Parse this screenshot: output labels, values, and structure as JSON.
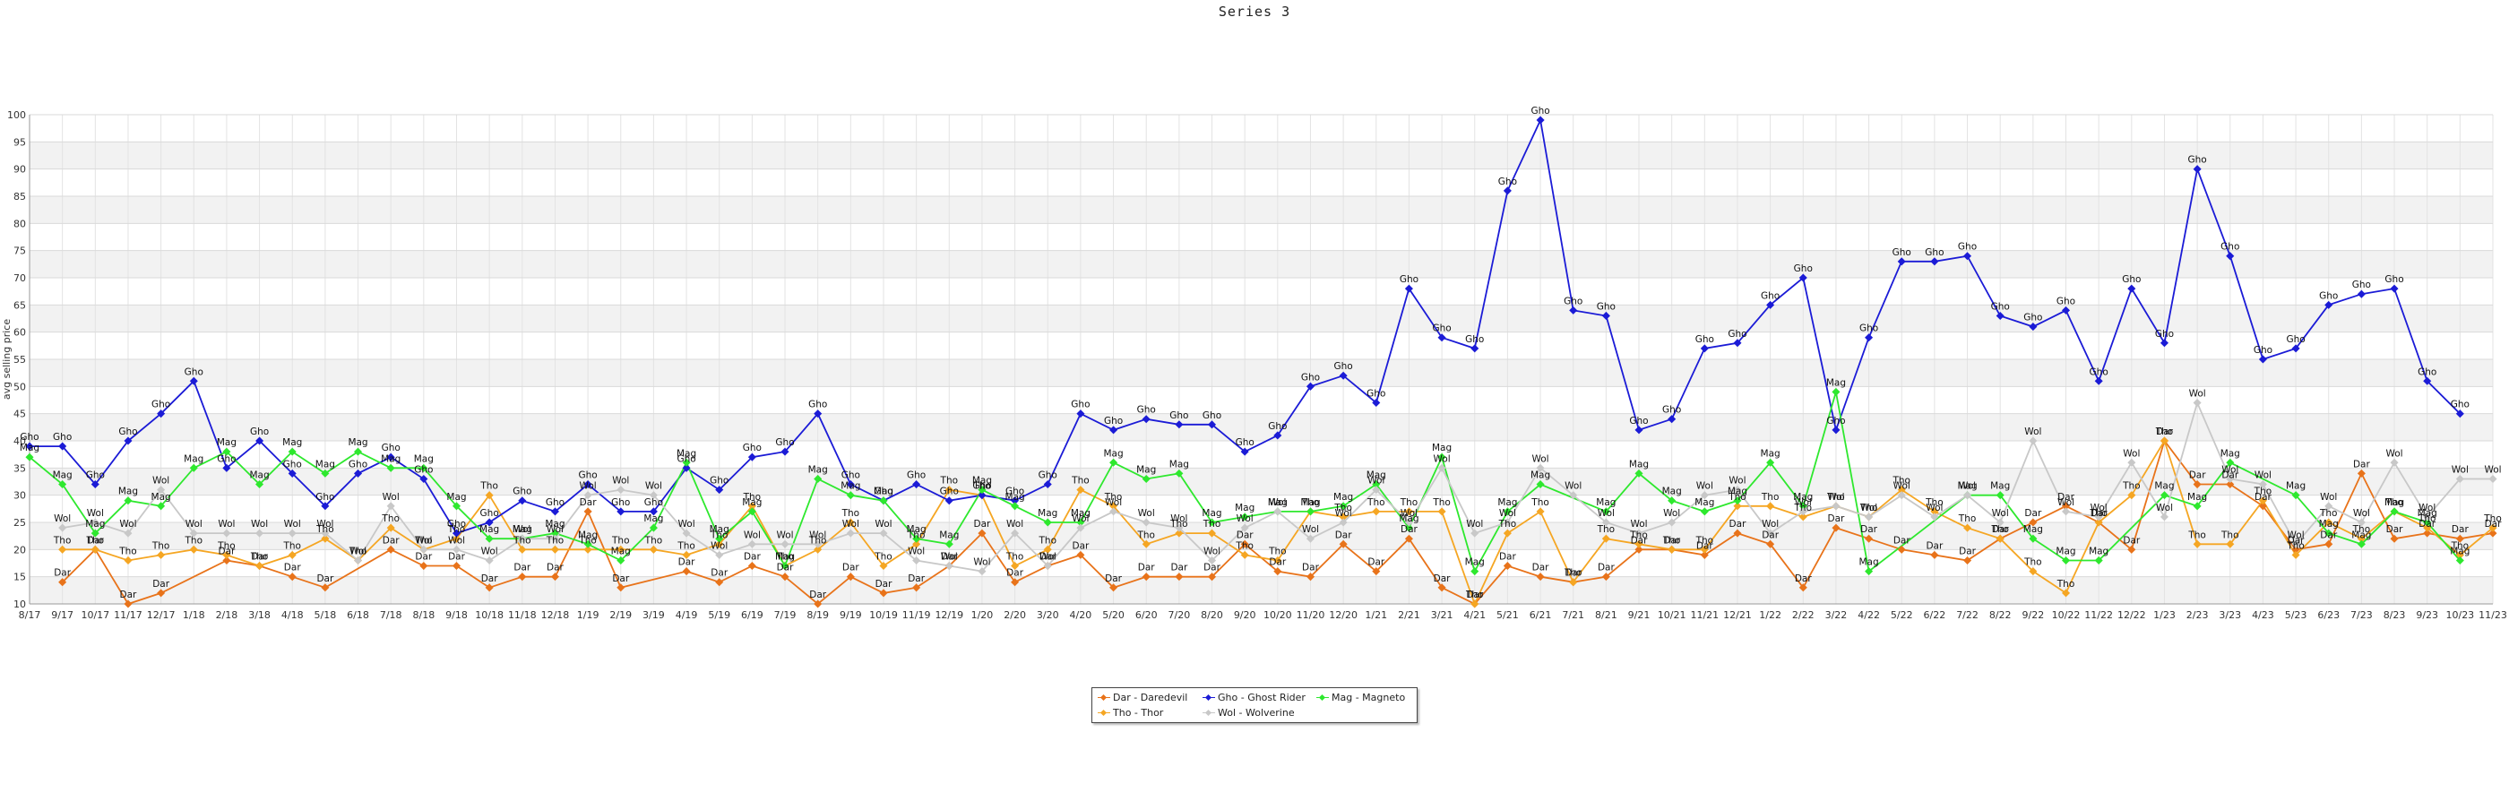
{
  "chart_data": {
    "type": "line",
    "title": "Series 3",
    "ylabel": "avg selling price",
    "xlabel": "",
    "ylim": [
      10,
      100
    ],
    "yticks": [
      10,
      15,
      20,
      25,
      30,
      35,
      40,
      45,
      50,
      55,
      60,
      65,
      70,
      75,
      80,
      85,
      90,
      95,
      100
    ],
    "x_tick_labels": [
      "8/17",
      "9/17",
      "10/17",
      "11/17",
      "12/17",
      "1/18",
      "2/18",
      "3/18",
      "4/18",
      "5/18",
      "6/18",
      "7/18",
      "8/18",
      "9/18",
      "10/18",
      "11/18",
      "12/18",
      "1/19",
      "2/19",
      "3/19",
      "4/19",
      "5/19",
      "6/19",
      "7/19",
      "8/19",
      "9/19",
      "10/19",
      "11/19",
      "12/19",
      "1/20",
      "2/20",
      "3/20",
      "4/20",
      "5/20",
      "6/20",
      "7/20",
      "8/20",
      "9/20",
      "10/20",
      "11/20",
      "12/20",
      "1/21",
      "2/21",
      "3/21",
      "4/21",
      "5/21",
      "6/21",
      "7/21",
      "8/21",
      "9/21",
      "10/21",
      "11/21",
      "12/21",
      "1/22",
      "2/22",
      "3/22",
      "4/22",
      "5/22",
      "6/22",
      "7/22",
      "8/22",
      "9/22",
      "10/22",
      "11/22",
      "12/22",
      "1/23",
      "2/23",
      "3/23",
      "4/23",
      "5/23",
      "6/23",
      "7/23",
      "8/23",
      "9/23",
      "10/23",
      "11/23"
    ],
    "grid": true,
    "legend_position": "bottom-center",
    "series": [
      {
        "name": "Dar - Daredevil",
        "short": "Dar",
        "color": "#e8731a",
        "values": [
          null,
          14,
          20,
          10,
          12,
          null,
          18,
          17,
          15,
          13,
          null,
          20,
          17,
          17,
          13,
          15,
          15,
          27,
          13,
          null,
          16,
          14,
          17,
          15,
          10,
          15,
          12,
          13,
          17,
          23,
          14,
          17,
          19,
          13,
          15,
          15,
          15,
          21,
          16,
          15,
          21,
          16,
          22,
          13,
          10,
          17,
          15,
          14,
          15,
          20,
          20,
          19,
          23,
          21,
          13,
          24,
          22,
          20,
          19,
          18,
          22,
          25,
          28,
          25,
          20,
          40,
          32,
          32,
          28,
          20,
          21,
          34,
          22,
          23,
          22,
          23
        ]
      },
      {
        "name": "Tho - Thor",
        "short": "Tho",
        "color": "#f5a623",
        "values": [
          null,
          20,
          20,
          18,
          19,
          20,
          19,
          17,
          19,
          22,
          18,
          24,
          20,
          22,
          30,
          20,
          20,
          20,
          20,
          20,
          19,
          21,
          28,
          17,
          20,
          25,
          17,
          21,
          31,
          30,
          17,
          20,
          31,
          28,
          21,
          23,
          23,
          19,
          18,
          27,
          26,
          27,
          27,
          27,
          10,
          23,
          27,
          14,
          22,
          21,
          20,
          20,
          28,
          28,
          26,
          28,
          26,
          31,
          27,
          24,
          22,
          16,
          12,
          25,
          30,
          40,
          21,
          21,
          29,
          19,
          25,
          22,
          27,
          24,
          19,
          24
        ]
      },
      {
        "name": "Gho - Ghost Rider",
        "short": "Gho",
        "color": "#1b1bd6",
        "values": [
          39,
          39,
          32,
          40,
          45,
          51,
          35,
          40,
          34,
          28,
          34,
          37,
          33,
          23,
          25,
          29,
          27,
          32,
          27,
          27,
          35,
          31,
          37,
          38,
          45,
          32,
          29,
          32,
          29,
          30,
          29,
          32,
          45,
          42,
          44,
          43,
          43,
          38,
          41,
          50,
          52,
          47,
          68,
          59,
          57,
          86,
          99,
          64,
          63,
          42,
          44,
          57,
          58,
          65,
          70,
          42,
          59,
          73,
          73,
          74,
          63,
          61,
          64,
          51,
          68,
          58,
          90,
          74,
          55,
          57,
          65,
          67,
          68,
          51,
          45,
          null
        ]
      },
      {
        "name": "Mag - Magneto",
        "short": "Mag",
        "color": "#2ee82e",
        "values": [
          37,
          32,
          23,
          29,
          28,
          35,
          38,
          32,
          38,
          34,
          38,
          35,
          35,
          28,
          22,
          22,
          23,
          21,
          18,
          24,
          36,
          22,
          27,
          17,
          33,
          30,
          29,
          22,
          21,
          31,
          28,
          25,
          25,
          36,
          33,
          34,
          25,
          26,
          27,
          27,
          28,
          32,
          24,
          37,
          16,
          27,
          32,
          null,
          27,
          34,
          29,
          27,
          29,
          36,
          28,
          49,
          16,
          null,
          null,
          30,
          30,
          22,
          18,
          18,
          null,
          30,
          28,
          36,
          null,
          30,
          23,
          21,
          27,
          25,
          18,
          null
        ]
      },
      {
        "name": "Wol - Wolverine",
        "short": "Wol",
        "color": "#c8c8c8",
        "values": [
          null,
          24,
          25,
          23,
          31,
          23,
          23,
          23,
          23,
          23,
          18,
          28,
          20,
          20,
          18,
          22,
          22,
          30,
          31,
          30,
          23,
          19,
          21,
          21,
          21,
          23,
          23,
          18,
          17,
          16,
          23,
          17,
          24,
          27,
          25,
          24,
          18,
          24,
          27,
          22,
          25,
          31,
          25,
          35,
          23,
          25,
          35,
          30,
          25,
          23,
          25,
          30,
          31,
          23,
          27,
          28,
          26,
          30,
          26,
          30,
          25,
          40,
          27,
          26,
          36,
          26,
          47,
          33,
          32,
          21,
          28,
          25,
          36,
          26,
          33,
          33
        ]
      }
    ]
  }
}
